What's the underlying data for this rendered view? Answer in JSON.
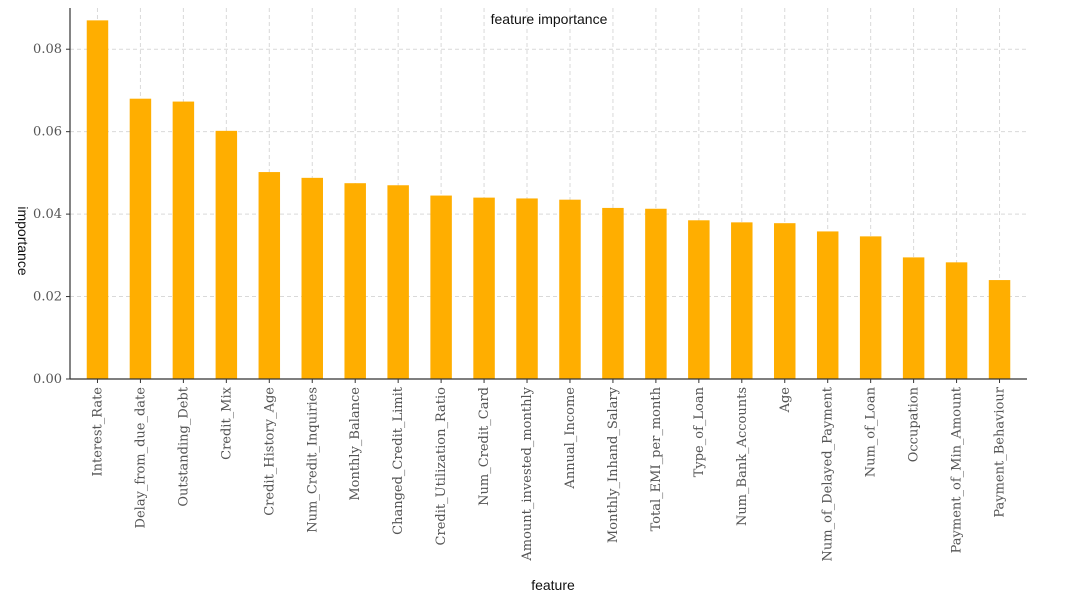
{
  "chart_data": {
    "type": "bar",
    "title": "feature importance",
    "xlabel": "feature",
    "ylabel": "importance",
    "ylim": [
      0,
      0.09
    ],
    "yticks": [
      "0.00",
      "0.02",
      "0.04",
      "0.06",
      "0.08"
    ],
    "grid": true,
    "bar_color": "#FFAE00",
    "categories": [
      "Interest_Rate",
      "Delay_from_due_date",
      "Outstanding_Debt",
      "Credit_Mix",
      "Credit_History_Age",
      "Num_Credit_Inquiries",
      "Monthly_Balance",
      "Changed_Credit_Limit",
      "Credit_Utilization_Ratio",
      "Num_Credit_Card",
      "Amount_invested_monthly",
      "Annual_Income",
      "Monthly_Inhand_Salary",
      "Total_EMI_per_month",
      "Type_of_Loan",
      "Num_Bank_Accounts",
      "Age",
      "Num_of_Delayed_Payment",
      "Num_of_Loan",
      "Occupation",
      "Payment_of_Min_Amount",
      "Payment_Behaviour"
    ],
    "values": [
      0.087,
      0.068,
      0.0673,
      0.0602,
      0.0502,
      0.0488,
      0.0475,
      0.047,
      0.0445,
      0.044,
      0.0438,
      0.0435,
      0.0415,
      0.0413,
      0.0385,
      0.038,
      0.0378,
      0.0358,
      0.0346,
      0.0295,
      0.0283,
      0.024
    ]
  }
}
